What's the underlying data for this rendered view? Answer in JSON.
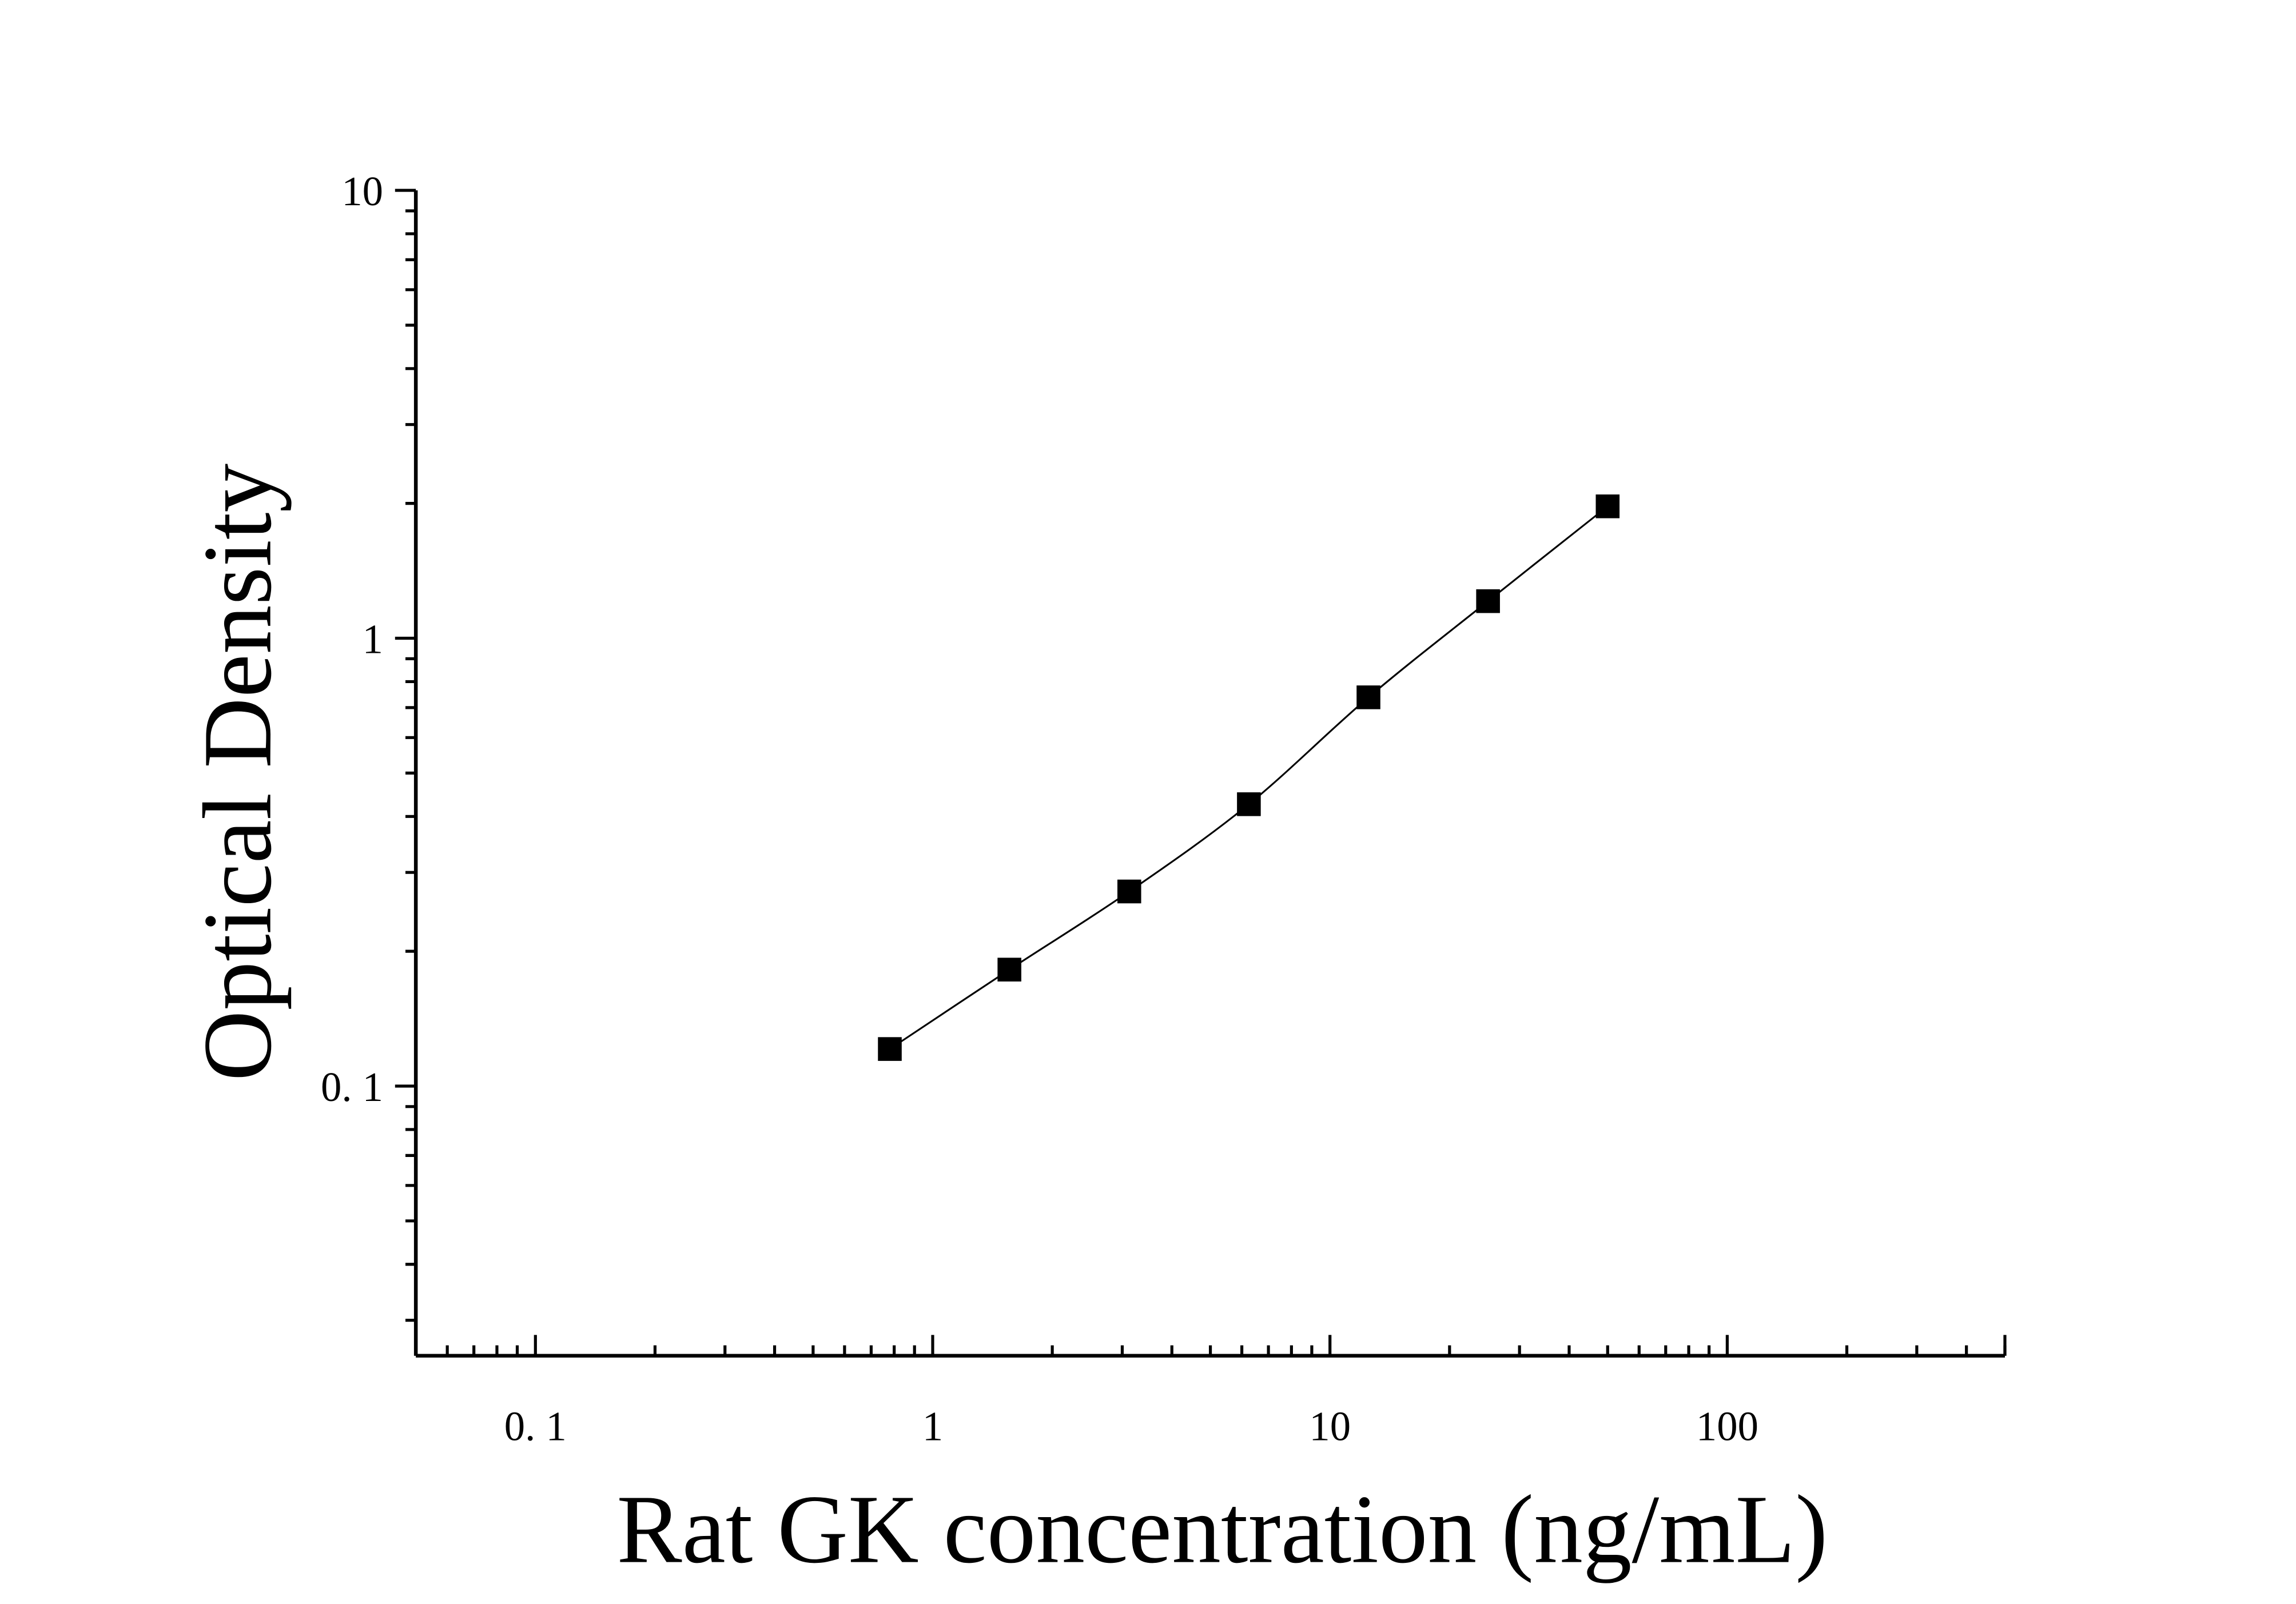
{
  "chart_data": {
    "type": "scatter",
    "title": "",
    "xlabel": "Rat GK concentration (ng/mL)",
    "ylabel": "Optical Density",
    "x_scale": "log",
    "y_scale": "log",
    "xlim": [
      0.05,
      500
    ],
    "ylim": [
      0.025,
      10
    ],
    "x_ticks": [
      {
        "value": 0.1,
        "label": "0. 1"
      },
      {
        "value": 1,
        "label": "1"
      },
      {
        "value": 10,
        "label": "10"
      },
      {
        "value": 100,
        "label": "100"
      }
    ],
    "y_ticks": [
      {
        "value": 0.1,
        "label": "0. 1"
      },
      {
        "value": 1,
        "label": "1"
      },
      {
        "value": 10,
        "label": "10"
      }
    ],
    "grid": false,
    "legend": "none",
    "marker": "square",
    "color": "#000000",
    "fit_curve": true,
    "series": [
      {
        "x": [
          0.78,
          1.56,
          3.125,
          6.25,
          12.5,
          25,
          50
        ],
        "y": [
          0.121,
          0.182,
          0.272,
          0.426,
          0.738,
          1.21,
          1.97
        ]
      }
    ]
  }
}
